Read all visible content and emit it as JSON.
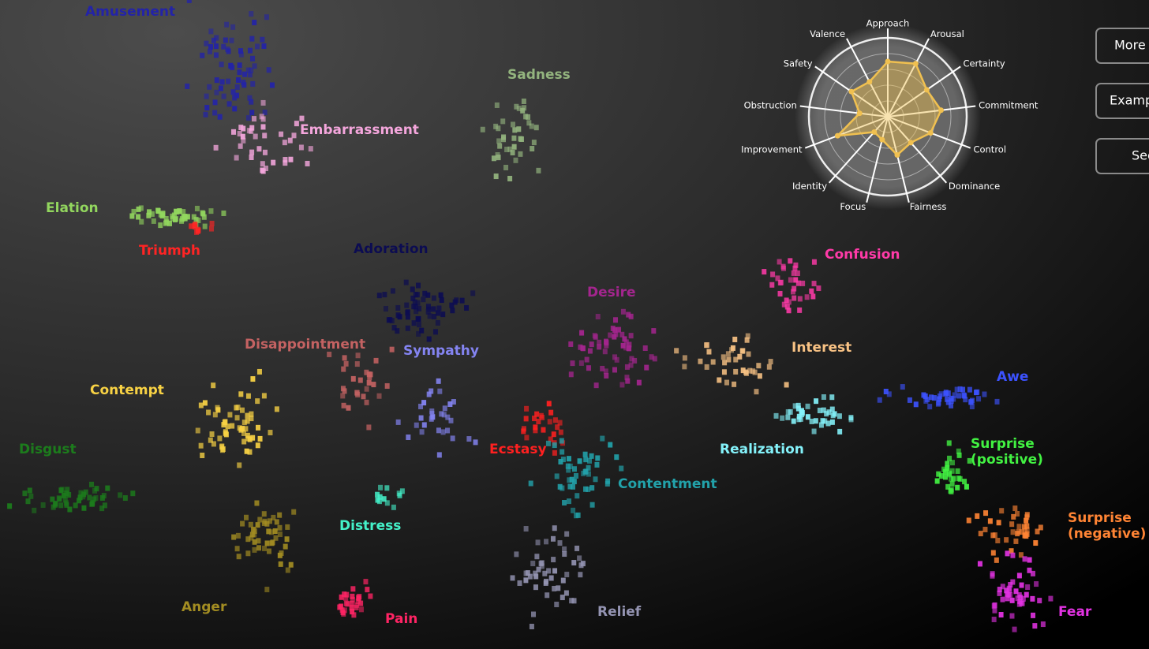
{
  "emotions": [
    {
      "lines": [
        "Amusement"
      ],
      "color": "#2323a8"
    },
    {
      "lines": [
        "Embarrassment"
      ],
      "color": "#f4a6dc"
    },
    {
      "lines": [
        "Sadness"
      ],
      "color": "#93b47e"
    },
    {
      "lines": [
        "Elation"
      ],
      "color": "#92d65e"
    },
    {
      "lines": [
        "Triumph"
      ],
      "color": "#ff2424"
    },
    {
      "lines": [
        "Adoration"
      ],
      "color": "#0c0c52"
    },
    {
      "lines": [
        "Confusion"
      ],
      "color": "#ff3aa8"
    },
    {
      "lines": [
        "Desire"
      ],
      "color": "#a4258e"
    },
    {
      "lines": [
        "Disappointment"
      ],
      "color": "#c46262"
    },
    {
      "lines": [
        "Sympathy"
      ],
      "color": "#8484f2"
    },
    {
      "lines": [
        "Interest"
      ],
      "color": "#f8c284"
    },
    {
      "lines": [
        "Awe"
      ],
      "color": "#3c52ff"
    },
    {
      "lines": [
        "Contempt"
      ],
      "color": "#f8d244"
    },
    {
      "lines": [
        "Ecstasy"
      ],
      "color": "#ff2020"
    },
    {
      "lines": [
        "Realization"
      ],
      "color": "#84f2fa"
    },
    {
      "lines": [
        "Disgust"
      ],
      "color": "#1c7c1c"
    },
    {
      "lines": [
        "Surprise",
        "(positive)"
      ],
      "color": "#42f242"
    },
    {
      "lines": [
        "Contentment"
      ],
      "color": "#22a2aa"
    },
    {
      "lines": [
        "Surprise",
        "(negative)"
      ],
      "color": "#ff8434"
    },
    {
      "lines": [
        "Distress"
      ],
      "color": "#44f2ca"
    },
    {
      "lines": [
        "Anger"
      ],
      "color": "#a28c22"
    },
    {
      "lines": [
        "Pain"
      ],
      "color": "#ff2464"
    },
    {
      "lines": [
        "Relief"
      ],
      "color": "#9494b2"
    },
    {
      "lines": [
        "Fear"
      ],
      "color": "#e232e2"
    }
  ],
  "radar": {
    "axes": [
      "Approach",
      "Arousal",
      "Certainty",
      "Commitment",
      "Control",
      "Dominance",
      "Fairness",
      "Focus",
      "Identity",
      "Improvement",
      "Obstruction",
      "Safety",
      "Valence"
    ],
    "values": [
      3.5,
      3.8,
      3.0,
      3.4,
      2.9,
      2.2,
      2.5,
      1.5,
      1.3,
      3.4,
      1.8,
      2.8,
      2.5
    ],
    "rlim": [
      0,
      5
    ],
    "color": "#f0c050"
  },
  "buttons": [
    "More",
    "Exampl",
    "See"
  ]
}
